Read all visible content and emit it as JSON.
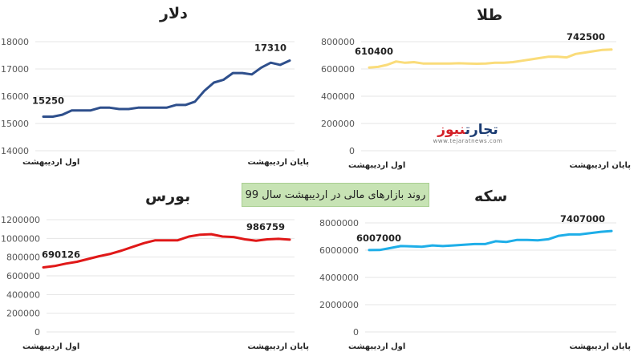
{
  "banner_text": "روند بازارهای مالی در اردیبهشت سال 99",
  "logo": {
    "part1": "تجارت",
    "part2": "نیوز",
    "url": "www.tejaratnews.com"
  },
  "chart_data": [
    {
      "type": "line",
      "title": "دلار",
      "color": "#2e4f8c",
      "ylim": [
        14000,
        18000
      ],
      "yticks": [
        14000,
        15000,
        16000,
        17000,
        18000
      ],
      "x_start_label": "اول اردیبهشت",
      "x_end_label": "پایان اردیبهشت",
      "values": [
        15250,
        15250,
        15320,
        15480,
        15480,
        15480,
        15580,
        15580,
        15530,
        15530,
        15580,
        15580,
        15580,
        15580,
        15680,
        15680,
        15800,
        16200,
        16500,
        16600,
        16850,
        16850,
        16800,
        17050,
        17230,
        17150,
        17310
      ],
      "first_label": "15250",
      "last_label": "17310"
    },
    {
      "type": "line",
      "title": "طلا",
      "color": "#fadc7a",
      "ylim": [
        0,
        800000
      ],
      "yticks": [
        0,
        200000,
        400000,
        600000,
        800000
      ],
      "x_start_label": "اول اردیبهشت",
      "x_end_label": "پایان اردیبهشت",
      "values": [
        610400,
        615000,
        630000,
        655000,
        645000,
        650000,
        640000,
        640000,
        640000,
        640000,
        642000,
        640000,
        638000,
        640000,
        645000,
        645000,
        650000,
        660000,
        670000,
        680000,
        690000,
        690000,
        685000,
        710000,
        720000,
        730000,
        740000,
        742500
      ],
      "first_label": "610400",
      "last_label": "742500"
    },
    {
      "type": "line",
      "title": "بورس",
      "color": "#e01818",
      "ylim": [
        0,
        1200000
      ],
      "yticks": [
        0,
        200000,
        400000,
        600000,
        800000,
        1000000,
        1200000
      ],
      "x_start_label": "اول اردیبهشت",
      "x_end_label": "پایان اردیبهشت",
      "values": [
        690126,
        705000,
        730000,
        750000,
        780000,
        810000,
        835000,
        870000,
        910000,
        950000,
        980000,
        980000,
        980000,
        1020000,
        1040000,
        1045000,
        1020000,
        1015000,
        990000,
        975000,
        990000,
        995000,
        986759
      ],
      "first_label": "690126",
      "last_label": "986759"
    },
    {
      "type": "line",
      "title": "سکه",
      "color": "#1eaee8",
      "ylim": [
        0,
        8000000
      ],
      "yticks": [
        0,
        2000000,
        4000000,
        6000000,
        8000000
      ],
      "x_start_label": "اول اردیبهشت",
      "x_end_label": "پایان اردیبهشت",
      "values": [
        6007000,
        6010000,
        6150000,
        6300000,
        6280000,
        6250000,
        6350000,
        6300000,
        6350000,
        6400000,
        6450000,
        6450000,
        6650000,
        6600000,
        6750000,
        6750000,
        6720000,
        6800000,
        7050000,
        7150000,
        7150000,
        7250000,
        7350000,
        7407000
      ],
      "first_label": "6007000",
      "last_label": "7407000"
    }
  ]
}
